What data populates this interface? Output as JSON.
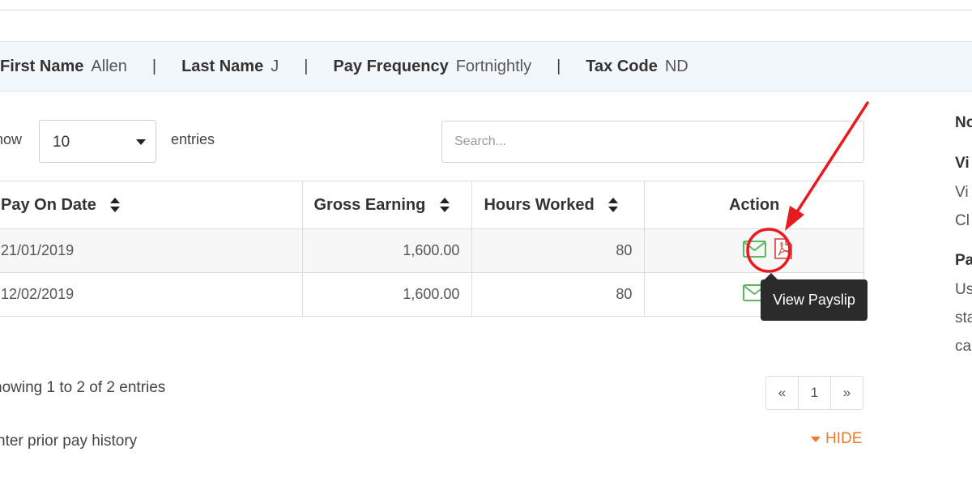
{
  "employee": {
    "first_name_label": "First Name",
    "first_name": "Allen",
    "last_name_label": "Last Name",
    "last_name": "J",
    "pay_frequency_label": "Pay Frequency",
    "pay_frequency": "Fortnightly",
    "tax_code_label": "Tax Code",
    "tax_code": "ND",
    "separator": "|"
  },
  "length_control": {
    "show_label": "how",
    "selected": "10",
    "entries_label": "entries"
  },
  "search": {
    "placeholder": "Search..."
  },
  "table": {
    "headers": {
      "pay_on_date": "Pay On Date",
      "gross_earning": "Gross Earning",
      "hours_worked": "Hours Worked",
      "action": "Action"
    },
    "rows": [
      {
        "pay_on_date": "21/01/2019",
        "gross_earning": "1,600.00",
        "hours_worked": "80"
      },
      {
        "pay_on_date": "12/02/2019",
        "gross_earning": "1,600.00",
        "hours_worked": "80"
      }
    ]
  },
  "tooltip": {
    "text": "View Payslip"
  },
  "footer": {
    "showing": "howing 1 to 2 of 2 entries",
    "pager": {
      "prev": "«",
      "page": "1",
      "next": "»"
    },
    "prior_history": "nter prior pay history",
    "hide_label": "HIDE"
  },
  "side_panel": {
    "l1": "No",
    "l2": "Vi",
    "l3": "Vi",
    "l4": "Cl",
    "l5": "Pa",
    "l6": "Us",
    "l7": "sta",
    "l8": "ca"
  },
  "colors": {
    "accent_orange": "#ee7a2d",
    "mail_green": "#5cb85c",
    "pdf_red": "#d9534f",
    "annotation_red": "#e8191f",
    "info_bar_bg": "#f2f7fc"
  },
  "icons": {
    "sort": "sort-updown-icon",
    "mail": "envelope-icon",
    "pdf": "pdf-file-icon",
    "caret": "caret-down-icon"
  }
}
